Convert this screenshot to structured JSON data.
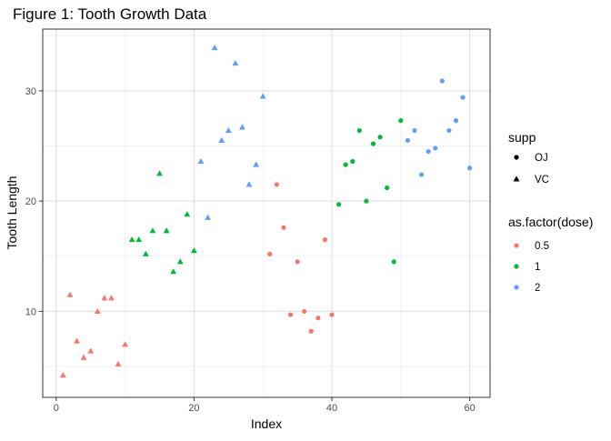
{
  "chart_data": {
    "type": "scatter",
    "title": "Figure 1: Tooth Growth Data",
    "xlabel": "Index",
    "ylabel": "Tooth Length",
    "xlim": [
      -1.95,
      62.95
    ],
    "ylim": [
      2.2,
      35.6
    ],
    "x_ticks": [
      0,
      20,
      40,
      60
    ],
    "y_ticks": [
      10,
      20,
      30
    ],
    "grid": true,
    "shape_legend": {
      "title": "supp",
      "entries": [
        {
          "label": "OJ",
          "shape": "circle"
        },
        {
          "label": "VC",
          "shape": "triangle"
        }
      ]
    },
    "color_legend": {
      "title": "as.factor(dose)",
      "entries": [
        {
          "label": "0.5",
          "color": "#F8766D"
        },
        {
          "label": "1",
          "color": "#00BA38"
        },
        {
          "label": "2",
          "color": "#619CFF"
        }
      ]
    },
    "series": [
      {
        "supp": "VC",
        "dose": "0.5",
        "x": [
          1,
          2,
          3,
          4,
          5,
          6,
          7,
          8,
          9,
          10
        ],
        "y": [
          4.2,
          11.5,
          7.3,
          5.8,
          6.4,
          10.0,
          11.2,
          11.2,
          5.2,
          7.0
        ]
      },
      {
        "supp": "VC",
        "dose": "1",
        "x": [
          11,
          12,
          13,
          14,
          15,
          16,
          17,
          18,
          19,
          20
        ],
        "y": [
          16.5,
          16.5,
          15.2,
          17.3,
          22.5,
          17.3,
          13.6,
          14.5,
          18.8,
          15.5
        ]
      },
      {
        "supp": "VC",
        "dose": "2",
        "x": [
          21,
          22,
          23,
          24,
          25,
          26,
          27,
          28,
          29,
          30
        ],
        "y": [
          23.6,
          18.5,
          33.9,
          25.5,
          26.4,
          32.5,
          26.7,
          21.5,
          23.3,
          29.5
        ]
      },
      {
        "supp": "OJ",
        "dose": "0.5",
        "x": [
          31,
          32,
          33,
          34,
          35,
          36,
          37,
          38,
          39,
          40
        ],
        "y": [
          15.2,
          21.5,
          17.6,
          9.7,
          14.5,
          10.0,
          8.2,
          9.4,
          16.5,
          9.7
        ]
      },
      {
        "supp": "OJ",
        "dose": "1",
        "x": [
          41,
          42,
          43,
          44,
          45,
          46,
          47,
          48,
          49,
          50
        ],
        "y": [
          19.7,
          23.3,
          23.6,
          26.4,
          20.0,
          25.2,
          25.8,
          21.2,
          14.5,
          27.3
        ]
      },
      {
        "supp": "OJ",
        "dose": "2",
        "x": [
          51,
          52,
          53,
          54,
          55,
          56,
          57,
          58,
          59,
          60
        ],
        "y": [
          25.5,
          26.4,
          22.4,
          24.5,
          24.8,
          30.9,
          26.4,
          27.3,
          29.4,
          23.0
        ]
      }
    ]
  }
}
